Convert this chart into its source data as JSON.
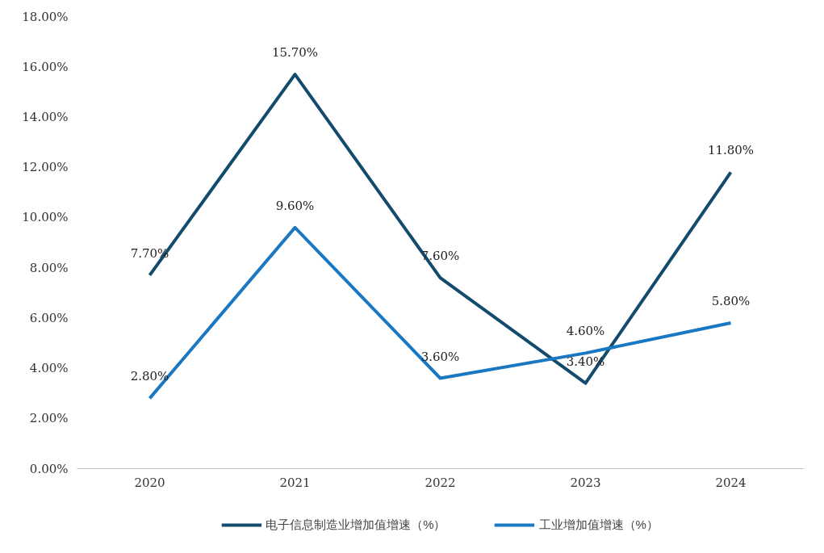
{
  "chart_data": {
    "type": "line",
    "categories": [
      "2020",
      "2021",
      "2022",
      "2023",
      "2024"
    ],
    "series": [
      {
        "name": "电子信息制造业增加值增速（%）",
        "color": "#124b6e",
        "values": [
          7.7,
          15.7,
          7.6,
          3.4,
          11.8
        ],
        "value_labels": [
          "7.70%",
          "15.70%",
          "7.60%",
          "3.40%",
          "11.80%"
        ]
      },
      {
        "name": "工业增加值增速（%）",
        "color": "#1a78c2",
        "values": [
          2.8,
          9.6,
          3.6,
          4.6,
          5.8
        ],
        "value_labels": [
          "2.80%",
          "9.60%",
          "3.60%",
          "4.60%",
          "5.80%"
        ]
      }
    ],
    "ylim": [
      0,
      18
    ],
    "yticks": [
      {
        "value": 0,
        "label": "0.00%"
      },
      {
        "value": 2,
        "label": "2.00%"
      },
      {
        "value": 4,
        "label": "4.00%"
      },
      {
        "value": 6,
        "label": "6.00%"
      },
      {
        "value": 8,
        "label": "8.00%"
      },
      {
        "value": 10,
        "label": "10.00%"
      },
      {
        "value": 12,
        "label": "12.00%"
      },
      {
        "value": 14,
        "label": "14.00%"
      },
      {
        "value": 16,
        "label": "16.00%"
      },
      {
        "value": 18,
        "label": "18.00%"
      }
    ],
    "grid": false,
    "legend": "bottom",
    "marker": "none",
    "line_style": "solid"
  }
}
